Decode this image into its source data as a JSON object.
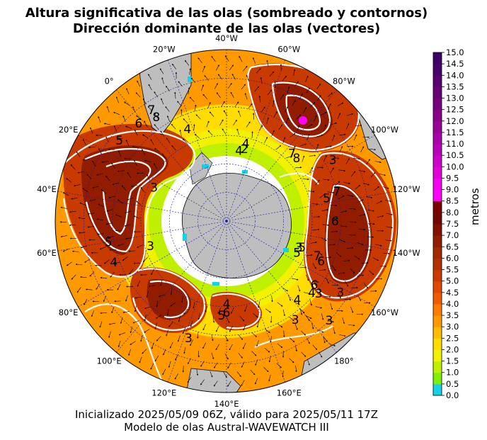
{
  "title_line1": "Altura significativa de las olas (sombreado y contornos)",
  "title_line2": "Dirección dominante de las olas (vectores)",
  "footer_line1": "Inicializado 2025/05/09 06Z, válido para 2025/05/11 17Z",
  "footer_line2": "Modelo de olas Austral-WAVEWATCH III",
  "colorbar": {
    "unit": "metros",
    "ticks": [
      "0.0",
      "0.5",
      "1.0",
      "1.5",
      "2.0",
      "2.5",
      "3.0",
      "3.5",
      "4.0",
      "4.5",
      "5.0",
      "5.5",
      "6.0",
      "6.5",
      "7.0",
      "7.5",
      "8.0",
      "8.5",
      "9.0",
      "9.5",
      "10.0",
      "10.5",
      "11.0",
      "11.5",
      "12.0",
      "12.5",
      "13.0",
      "13.5",
      "14.0",
      "14.5",
      "15.0"
    ],
    "colors": [
      "#16d2e8",
      "#7ef000",
      "#bff000",
      "#f2f200",
      "#ffdd00",
      "#ffbb00",
      "#ff9900",
      "#ff7a00",
      "#f25a00",
      "#e04a00",
      "#c83a00",
      "#b43000",
      "#a22800",
      "#921c00",
      "#821000",
      "#720600",
      "#7a0000",
      "#ff00ff",
      "#f400f0",
      "#e000d8",
      "#cc00c8",
      "#b800b8",
      "#a800a8",
      "#980098",
      "#880088",
      "#78007e",
      "#680078",
      "#580072",
      "#48006c",
      "#3c0066"
    ]
  },
  "map": {
    "longitude_labels": [
      {
        "text": "40°W",
        "lon": -40
      },
      {
        "text": "20°W",
        "lon": -20
      },
      {
        "text": "0°",
        "lon": 0
      },
      {
        "text": "20°E",
        "lon": 20
      },
      {
        "text": "40°E",
        "lon": 40
      },
      {
        "text": "60°E",
        "lon": 60
      },
      {
        "text": "80°E",
        "lon": 80
      },
      {
        "text": "100°E",
        "lon": 100
      },
      {
        "text": "120°E",
        "lon": 120
      },
      {
        "text": "140°E",
        "lon": 140
      },
      {
        "text": "160°E",
        "lon": 160
      },
      {
        "text": "180°",
        "lon": 180
      },
      {
        "text": "160°W",
        "lon": -160
      },
      {
        "text": "140°W",
        "lon": -140
      },
      {
        "text": "120°W",
        "lon": -120
      },
      {
        "text": "100°W",
        "lon": -100
      },
      {
        "text": "80°W",
        "lon": -80
      },
      {
        "text": "60°W",
        "lon": -60
      }
    ],
    "contour_labels": [
      {
        "text": "3",
        "lon": -100,
        "lat": -47
      },
      {
        "text": "8",
        "lon": -88,
        "lat": -57
      },
      {
        "text": "7",
        "lon": -84,
        "lat": -57
      },
      {
        "text": "4",
        "lon": -50,
        "lat": -65
      },
      {
        "text": "2",
        "lon": -54,
        "lat": -64
      },
      {
        "text": "4",
        "lon": -54,
        "lat": -62
      },
      {
        "text": "7",
        "lon": -115,
        "lat": -50
      },
      {
        "text": "5",
        "lon": -117,
        "lat": -54
      },
      {
        "text": "6",
        "lon": -130,
        "lat": -52
      },
      {
        "text": "3",
        "lon": -150,
        "lat": -63
      },
      {
        "text": "5",
        "lon": -149,
        "lat": -62
      },
      {
        "text": "5",
        "lon": -154,
        "lat": -63
      },
      {
        "text": "6",
        "lon": -153,
        "lat": -54
      },
      {
        "text": "7",
        "lon": -151,
        "lat": -56
      },
      {
        "text": "3",
        "lon": -162,
        "lat": -43
      },
      {
        "text": "6",
        "lon": -166,
        "lat": -52
      },
      {
        "text": "4",
        "lon": -170,
        "lat": -51
      },
      {
        "text": "3",
        "lon": -168,
        "lat": -49
      },
      {
        "text": "4",
        "lon": -178,
        "lat": -53
      },
      {
        "text": "3",
        "lon": -174,
        "lat": -40
      },
      {
        "text": "3",
        "lon": 175,
        "lat": -48
      },
      {
        "text": "4",
        "lon": -17,
        "lat": -55
      },
      {
        "text": "8",
        "lon": -6,
        "lat": -46
      },
      {
        "text": "7",
        "lon": -6,
        "lat": -43
      },
      {
        "text": "6",
        "lon": 2,
        "lat": -44
      },
      {
        "text": "5",
        "lon": 13,
        "lat": -43
      },
      {
        "text": "3",
        "lon": 25,
        "lat": -62
      },
      {
        "text": "5",
        "lon": 60,
        "lat": -48
      },
      {
        "text": "4",
        "lon": 70,
        "lat": -48
      },
      {
        "text": "3",
        "lon": 68,
        "lat": -62
      },
      {
        "text": "3",
        "lon": 122,
        "lat": -47
      },
      {
        "text": "4",
        "lon": 140,
        "lat": -61
      },
      {
        "text": "6",
        "lon": 140,
        "lat": -58
      },
      {
        "text": "5",
        "lon": 137,
        "lat": -57
      }
    ]
  }
}
